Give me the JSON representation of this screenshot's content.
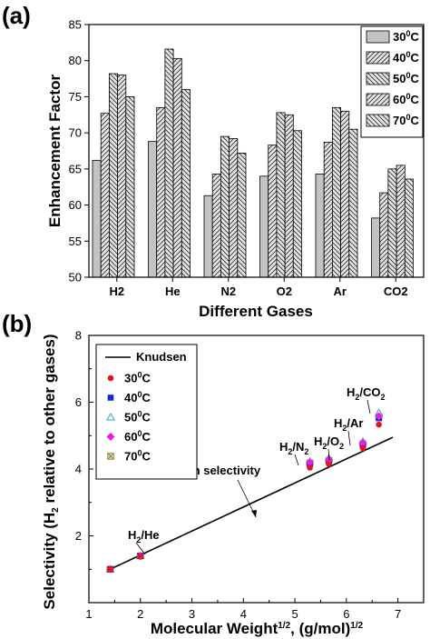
{
  "chart_data": [
    {
      "panel": "(a)",
      "type": "bar",
      "xlabel": "Different Gases",
      "ylabel": "Enhancement Factor",
      "ylim": [
        50,
        85
      ],
      "yticks": [
        "50",
        "55",
        "60",
        "65",
        "70",
        "75",
        "80",
        "85"
      ],
      "categories": [
        "H2",
        "He",
        "N2",
        "O2",
        "Ar",
        "CO2"
      ],
      "legend_position": "top-right",
      "series": [
        {
          "name": "30°C",
          "pattern": "solid-gray",
          "values": [
            66.2,
            68.8,
            61.3,
            64.0,
            64.3,
            58.2
          ]
        },
        {
          "name": "40°C",
          "pattern": "diagonal-forward",
          "values": [
            72.7,
            73.5,
            64.3,
            68.3,
            68.7,
            61.7
          ]
        },
        {
          "name": "50°C",
          "pattern": "diagonal-back",
          "values": [
            78.2,
            81.6,
            69.5,
            72.8,
            73.5,
            65.0
          ]
        },
        {
          "name": "60°C",
          "pattern": "diagonal-forward",
          "values": [
            78.0,
            80.3,
            69.2,
            72.5,
            73.0,
            65.5
          ]
        },
        {
          "name": "70°C",
          "pattern": "diagonal-back",
          "values": [
            75.0,
            76.0,
            67.2,
            70.3,
            70.5,
            63.6
          ]
        }
      ]
    },
    {
      "panel": "(b)",
      "type": "scatter",
      "xlabel": "Molecular Weight",
      "xlabel_sup": "1/2",
      "xlabel_tail": ", (g/mol)",
      "xlabel_tail_sup": "1/2",
      "ylabel": "Selectivity  (H",
      "ylabel_sub": "2",
      "ylabel_tail": " relative to other gases)",
      "xlim": [
        1,
        7.5
      ],
      "ylim": [
        0,
        8
      ],
      "xticks": [
        "1",
        "2",
        "3",
        "4",
        "5",
        "6",
        "7"
      ],
      "yticks": [
        "2",
        "4",
        "6",
        "8"
      ],
      "legend_position": "top-left",
      "line": {
        "name": "Knudsen",
        "x": [
          1.41,
          6.9
        ],
        "y": [
          1.0,
          4.95
        ]
      },
      "annotation": "Knudsen selectivity",
      "point_labels": [
        {
          "main": "H",
          "sub": "2",
          "tail": "/He"
        },
        {
          "main": "H",
          "sub": "2",
          "tail": "/N",
          "sub2": "2"
        },
        {
          "main": "H",
          "sub": "2",
          "tail": "/O",
          "sub2": "2"
        },
        {
          "main": "H",
          "sub": "2",
          "tail": "/Ar"
        },
        {
          "main": "H",
          "sub": "2",
          "tail": "/CO",
          "sub2": "2"
        }
      ],
      "x": [
        1.414,
        2.0,
        5.29,
        5.66,
        6.32,
        6.63
      ],
      "series": [
        {
          "name": "30°C",
          "marker": "circle",
          "color": "#e8141c",
          "values": [
            1.0,
            1.38,
            4.04,
            4.15,
            4.62,
            5.33
          ]
        },
        {
          "name": "40°C",
          "marker": "square",
          "color": "#1426d6",
          "values": [
            1.0,
            1.4,
            4.15,
            4.22,
            4.72,
            5.52
          ]
        },
        {
          "name": "50°C",
          "marker": "triangle",
          "color": "#2fa7b8",
          "values": [
            1.0,
            1.4,
            4.22,
            4.33,
            4.82,
            5.68
          ]
        },
        {
          "name": "60°C",
          "marker": "diamond",
          "color": "#e81ee8",
          "values": [
            1.0,
            1.39,
            4.2,
            4.28,
            4.78,
            5.58
          ]
        },
        {
          "name": "70°C",
          "marker": "x-square",
          "color": "#8c8a3c",
          "values": [
            1.0,
            1.4,
            4.18,
            4.25,
            4.75,
            5.55
          ]
        }
      ]
    }
  ]
}
